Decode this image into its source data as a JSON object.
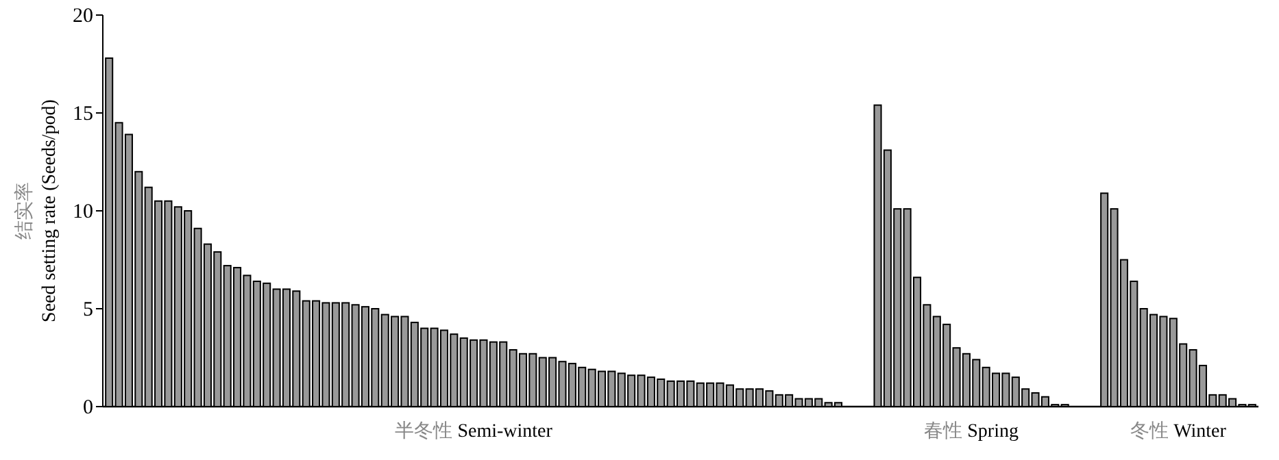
{
  "chart_data": {
    "type": "bar",
    "ylabel": "结实率 Seed setting rate (Seeds/pod)",
    "ylim": [
      0,
      20
    ],
    "yticks": [
      0,
      5,
      10,
      15,
      20
    ],
    "grid": false,
    "color": "#999999",
    "categories": [
      null,
      null,
      null,
      null,
      null,
      null,
      null,
      null,
      null,
      null,
      null,
      null,
      null,
      null,
      null,
      null,
      null,
      null,
      null,
      null,
      null,
      null,
      null,
      null,
      null,
      null,
      null,
      null,
      null,
      null,
      null,
      null,
      null,
      null,
      null,
      null,
      null,
      null,
      null,
      null,
      null,
      null,
      null,
      null,
      null,
      null,
      null,
      null,
      null,
      null,
      null,
      null,
      null,
      null,
      null,
      null,
      null,
      null,
      null,
      null,
      null,
      null,
      null,
      null,
      null,
      null,
      null,
      null,
      null,
      null,
      null,
      null,
      null,
      null,
      null,
      null,
      null,
      null,
      null,
      null,
      null,
      null,
      null,
      null,
      null,
      null,
      null,
      null,
      null,
      null,
      null,
      null,
      null,
      null,
      null,
      null,
      null,
      null,
      null,
      null,
      null,
      null,
      null,
      null,
      null,
      null,
      null,
      null,
      null,
      null,
      null,
      null,
      null,
      null,
      null,
      null,
      null
    ],
    "values": [
      17.8,
      14.5,
      13.9,
      12.0,
      11.2,
      10.5,
      10.5,
      10.2,
      10.0,
      9.1,
      8.3,
      7.9,
      7.2,
      7.1,
      6.7,
      6.4,
      6.3,
      6.0,
      6.0,
      5.9,
      5.4,
      5.4,
      5.3,
      5.3,
      5.3,
      5.2,
      5.1,
      5.0,
      4.7,
      4.6,
      4.6,
      4.3,
      4.0,
      4.0,
      3.9,
      3.7,
      3.5,
      3.4,
      3.4,
      3.3,
      3.3,
      2.9,
      2.7,
      2.7,
      2.5,
      2.5,
      2.3,
      2.2,
      2.0,
      1.9,
      1.8,
      1.8,
      1.7,
      1.6,
      1.6,
      1.5,
      1.4,
      1.3,
      1.3,
      1.3,
      1.2,
      1.2,
      1.2,
      1.1,
      0.9,
      0.9,
      0.9,
      0.8,
      0.6,
      0.6,
      0.4,
      0.4,
      0.4,
      0.2,
      0.2,
      null,
      null,
      null,
      15.4,
      13.1,
      10.1,
      10.1,
      6.6,
      5.2,
      4.6,
      4.2,
      3.0,
      2.7,
      2.4,
      2.0,
      1.7,
      1.7,
      1.5,
      0.9,
      0.7,
      0.5,
      0.1,
      0.1,
      null,
      null,
      null,
      10.9,
      10.1,
      7.5,
      6.4,
      5.0,
      4.7,
      4.6,
      4.5,
      3.2,
      2.9,
      2.1,
      0.6,
      0.6,
      0.4,
      0.1,
      0.1
    ],
    "annotations": [
      "半冬性 Semi-winter",
      "春性 Spring",
      "冬性 Winter"
    ]
  }
}
